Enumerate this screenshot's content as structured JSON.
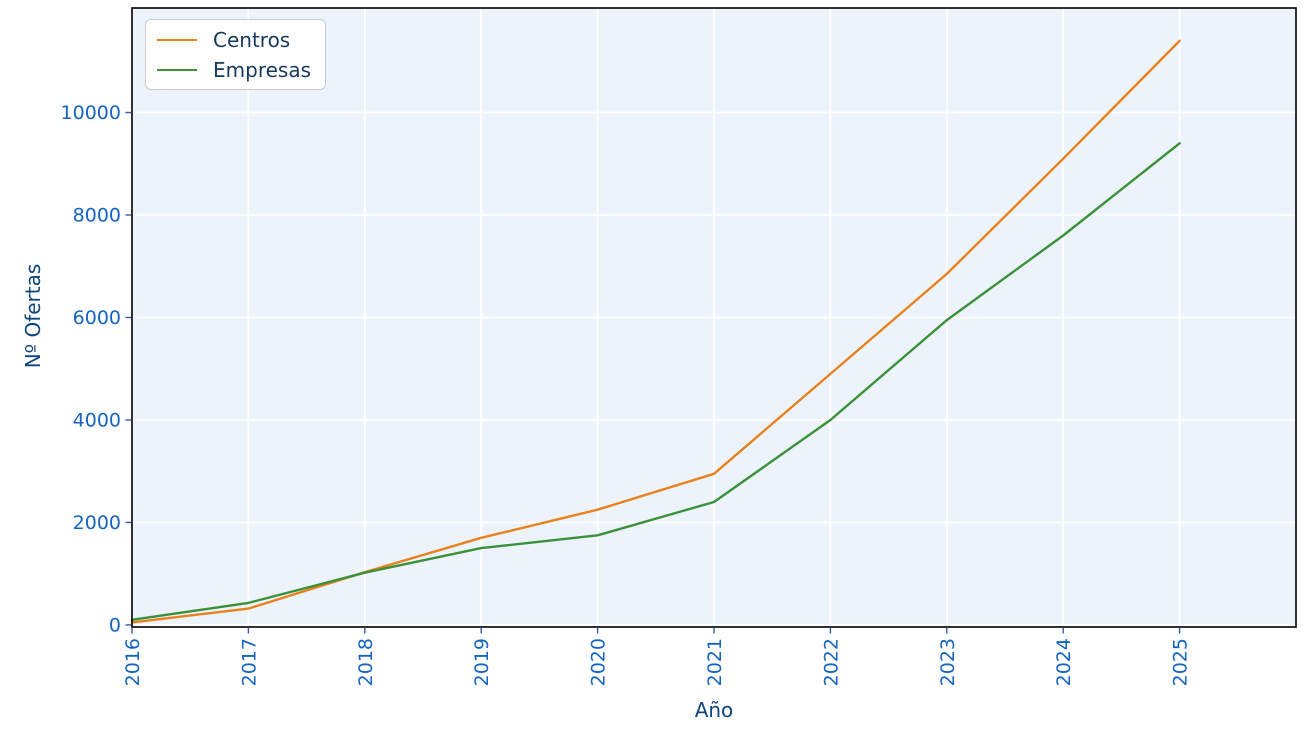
{
  "chart_data": {
    "type": "line",
    "title": "",
    "xlabel": "Año",
    "ylabel": "Nº Ofertas",
    "x": [
      2016,
      2017,
      2018,
      2019,
      2020,
      2021,
      2022,
      2023,
      2024,
      2025
    ],
    "series": [
      {
        "name": "Centros",
        "color": "#e8821e",
        "values": [
          50,
          320,
          1030,
          1700,
          2250,
          2950,
          4900,
          6850,
          9100,
          11400
        ]
      },
      {
        "name": "Empresas",
        "color": "#3a913a",
        "values": [
          100,
          430,
          1020,
          1500,
          1750,
          2400,
          4000,
          5950,
          7600,
          9400
        ]
      }
    ],
    "xticks": [
      2016,
      2017,
      2018,
      2019,
      2020,
      2021,
      2022,
      2023,
      2024,
      2025
    ],
    "yticks": [
      0,
      2000,
      4000,
      6000,
      8000,
      10000
    ],
    "xlim": [
      2016,
      2026
    ],
    "ylim": [
      -40,
      12040
    ],
    "grid": true,
    "legend_position": "upper-left",
    "colors": {
      "plot_background": "#edf3fb",
      "figure_background": "#ffffff",
      "grid": "#ffffff",
      "frame": "#000000",
      "tick_mark": "#2e5fa3",
      "tick_label": "#1565c0",
      "axis_label": "#0f457f",
      "legend_text": "#16395c"
    }
  }
}
